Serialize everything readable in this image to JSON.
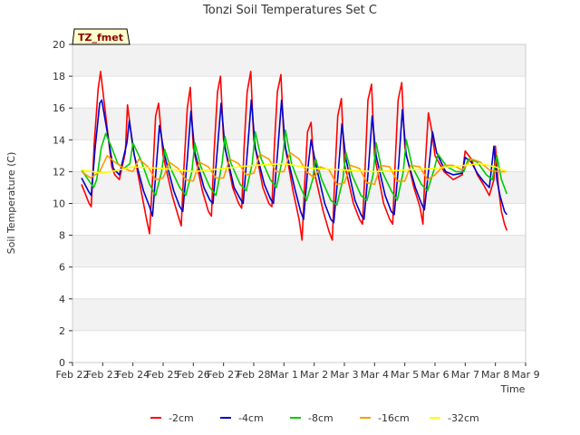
{
  "chart_data": {
    "type": "line",
    "title": "Tonzi Soil Temperatures Set C",
    "xlabel": "Time",
    "ylabel": "Soil Temperature (C)",
    "badge": "TZ_fmet",
    "ylim": [
      0,
      20
    ],
    "yticks": [
      0,
      2,
      4,
      6,
      8,
      10,
      12,
      14,
      16,
      18,
      20
    ],
    "xlim": [
      0,
      15
    ],
    "xticks": [
      0,
      1,
      2,
      3,
      4,
      5,
      6,
      7,
      8,
      9,
      10,
      11,
      12,
      13,
      14,
      15
    ],
    "xtick_labels": [
      "Feb 22",
      "Feb 23",
      "Feb 24",
      "Feb 25",
      "Feb 26",
      "Feb 27",
      "Feb 28",
      "Mar 1",
      "Mar 2",
      "Mar 3",
      "Mar 4",
      "Mar 5",
      "Mar 6",
      "Mar 7",
      "Mar 8",
      "Mar 9"
    ],
    "grid": "horizontal bands",
    "legend_position": "bottom",
    "series": [
      {
        "name": "-2cm",
        "color": "#ff0000",
        "x": [
          0.3,
          0.55,
          0.62,
          0.72,
          0.85,
          0.93,
          1.1,
          1.3,
          1.4,
          1.55,
          1.75,
          1.82,
          2.0,
          2.3,
          2.45,
          2.55,
          2.65,
          2.75,
          2.85,
          3.0,
          3.3,
          3.5,
          3.6,
          3.68,
          3.8,
          3.9,
          4.0,
          4.3,
          4.5,
          4.6,
          4.68,
          4.8,
          4.9,
          5.0,
          5.3,
          5.5,
          5.6,
          5.68,
          5.78,
          5.9,
          6.0,
          6.3,
          6.5,
          6.6,
          6.68,
          6.78,
          6.9,
          7.0,
          7.3,
          7.5,
          7.6,
          7.68,
          7.78,
          7.9,
          8.0,
          8.3,
          8.5,
          8.6,
          8.68,
          8.78,
          8.9,
          9.0,
          9.3,
          9.5,
          9.6,
          9.68,
          9.78,
          9.9,
          10.0,
          10.3,
          10.5,
          10.6,
          10.68,
          10.78,
          10.9,
          11.0,
          11.3,
          11.5,
          11.6,
          11.68,
          11.78,
          11.9,
          12.0,
          12.3,
          12.6,
          12.9,
          13.0,
          13.2,
          13.4,
          13.6,
          13.8,
          13.95,
          14.0,
          14.1,
          14.2,
          14.3,
          14.38
        ],
        "values": [
          11.2,
          10.0,
          9.8,
          13.8,
          17.2,
          18.3,
          15.5,
          12.3,
          11.8,
          11.5,
          13.2,
          16.2,
          13.5,
          10.5,
          9.0,
          8.1,
          11.5,
          15.5,
          16.3,
          13.0,
          10.5,
          9.2,
          8.6,
          12.0,
          16.0,
          17.3,
          13.5,
          10.8,
          9.5,
          9.2,
          13.0,
          17.0,
          18.0,
          14.0,
          11.0,
          10.0,
          9.7,
          13.5,
          17.0,
          18.3,
          14.0,
          11.0,
          10.0,
          9.8,
          13.5,
          17.0,
          18.1,
          14.0,
          10.8,
          9.0,
          7.7,
          11.0,
          14.5,
          15.1,
          12.0,
          9.5,
          8.2,
          7.7,
          11.5,
          15.5,
          16.6,
          12.5,
          10.0,
          9.0,
          8.7,
          12.0,
          16.5,
          17.5,
          13.0,
          10.0,
          9.0,
          8.7,
          12.5,
          16.5,
          17.6,
          13.5,
          11.0,
          9.8,
          8.7,
          12.5,
          15.7,
          14.5,
          13.0,
          12.0,
          11.5,
          11.8,
          13.3,
          12.8,
          11.8,
          11.2,
          10.5,
          11.5,
          13.6,
          11.0,
          9.5,
          8.7,
          8.3
        ]
      },
      {
        "name": "-4cm",
        "color": "#0000cc",
        "x": [
          0.3,
          0.55,
          0.62,
          0.75,
          0.9,
          0.97,
          1.15,
          1.35,
          1.55,
          1.8,
          1.88,
          2.05,
          2.35,
          2.55,
          2.65,
          2.78,
          2.88,
          3.05,
          3.35,
          3.55,
          3.65,
          3.8,
          3.92,
          4.05,
          4.35,
          4.55,
          4.65,
          4.8,
          4.92,
          5.05,
          5.35,
          5.55,
          5.65,
          5.8,
          5.92,
          6.05,
          6.35,
          6.55,
          6.65,
          6.8,
          6.92,
          7.05,
          7.35,
          7.55,
          7.65,
          7.78,
          7.9,
          8.05,
          8.35,
          8.55,
          8.65,
          8.8,
          8.92,
          9.05,
          9.35,
          9.55,
          9.65,
          9.8,
          9.92,
          10.05,
          10.35,
          10.55,
          10.65,
          10.8,
          10.92,
          11.05,
          11.35,
          11.55,
          11.65,
          11.8,
          11.92,
          12.05,
          12.35,
          12.6,
          12.9,
          13.0,
          13.2,
          13.4,
          13.6,
          13.8,
          13.95,
          14.05,
          14.15,
          14.3,
          14.38
        ],
        "values": [
          11.6,
          10.7,
          10.5,
          13.5,
          16.3,
          16.5,
          14.5,
          12.2,
          11.8,
          13.8,
          15.2,
          13.0,
          10.8,
          9.8,
          9.2,
          12.5,
          14.9,
          13.0,
          10.8,
          9.8,
          9.5,
          12.8,
          15.8,
          13.2,
          11.0,
          10.2,
          10.0,
          13.5,
          16.3,
          13.5,
          11.0,
          10.3,
          10.0,
          13.5,
          16.5,
          13.5,
          11.2,
          10.3,
          10.0,
          13.5,
          16.5,
          13.5,
          11.0,
          9.5,
          9.0,
          12.0,
          14.0,
          12.5,
          10.0,
          9.0,
          8.8,
          12.0,
          15.0,
          12.8,
          10.2,
          9.3,
          9.0,
          12.3,
          15.5,
          13.0,
          10.5,
          9.5,
          9.3,
          12.5,
          15.9,
          13.0,
          11.0,
          10.0,
          9.6,
          12.3,
          14.5,
          13.2,
          12.0,
          11.8,
          11.9,
          12.9,
          12.6,
          11.9,
          11.4,
          11.0,
          13.6,
          11.5,
          10.5,
          9.5,
          9.3
        ]
      },
      {
        "name": "-8cm",
        "color": "#00cc00",
        "x": [
          0.3,
          0.7,
          0.8,
          0.95,
          1.1,
          1.3,
          1.5,
          1.7,
          1.9,
          2.0,
          2.25,
          2.55,
          2.75,
          2.95,
          3.05,
          3.25,
          3.55,
          3.75,
          3.95,
          4.05,
          4.25,
          4.55,
          4.75,
          4.95,
          5.05,
          5.25,
          5.55,
          5.75,
          5.95,
          6.05,
          6.25,
          6.55,
          6.75,
          6.95,
          7.05,
          7.25,
          7.55,
          7.75,
          7.95,
          8.05,
          8.25,
          8.55,
          8.75,
          8.95,
          9.05,
          9.25,
          9.55,
          9.75,
          9.95,
          10.05,
          10.25,
          10.55,
          10.75,
          10.95,
          11.05,
          11.25,
          11.55,
          11.75,
          11.95,
          12.1,
          12.4,
          12.7,
          12.95,
          13.1,
          13.4,
          13.7,
          13.9,
          14.05,
          14.2,
          14.38
        ],
        "values": [
          12.1,
          11.0,
          11.5,
          13.5,
          14.4,
          13.5,
          12.5,
          12.2,
          12.5,
          13.8,
          12.8,
          11.2,
          10.5,
          12.0,
          13.4,
          12.2,
          11.0,
          10.5,
          12.0,
          13.8,
          12.3,
          11.0,
          10.5,
          12.5,
          14.2,
          12.5,
          11.2,
          10.8,
          12.5,
          14.5,
          12.8,
          11.5,
          11.0,
          12.8,
          14.6,
          12.5,
          11.0,
          10.2,
          11.5,
          12.8,
          11.5,
          10.2,
          9.9,
          11.5,
          13.2,
          11.8,
          10.5,
          10.2,
          11.8,
          13.8,
          12.0,
          10.8,
          10.2,
          12.0,
          14.0,
          12.3,
          11.2,
          10.8,
          12.0,
          13.1,
          12.3,
          12.0,
          12.0,
          12.8,
          12.6,
          11.8,
          11.5,
          13.0,
          11.5,
          10.6
        ]
      },
      {
        "name": "-16cm",
        "color": "#ff9900",
        "x": [
          0.3,
          0.6,
          0.9,
          1.15,
          1.4,
          1.7,
          2.0,
          2.2,
          2.5,
          2.75,
          3.0,
          3.2,
          3.5,
          3.75,
          4.0,
          4.2,
          4.5,
          4.75,
          5.0,
          5.2,
          5.5,
          5.75,
          6.0,
          6.2,
          6.5,
          6.75,
          7.0,
          7.2,
          7.5,
          7.75,
          8.0,
          8.2,
          8.5,
          8.75,
          9.0,
          9.2,
          9.5,
          9.75,
          10.0,
          10.2,
          10.5,
          10.75,
          11.0,
          11.2,
          11.5,
          11.75,
          12.0,
          12.3,
          12.6,
          12.9,
          13.2,
          13.5,
          13.8,
          14.1,
          14.38
        ],
        "values": [
          12.0,
          11.6,
          12.0,
          13.0,
          12.6,
          12.2,
          12.0,
          12.8,
          12.3,
          11.5,
          11.6,
          12.6,
          12.2,
          11.5,
          11.4,
          12.6,
          12.3,
          11.6,
          11.6,
          12.8,
          12.5,
          11.8,
          11.9,
          13.1,
          12.8,
          12.0,
          12.0,
          13.2,
          12.8,
          12.0,
          11.6,
          12.3,
          12.1,
          11.2,
          11.3,
          12.4,
          12.2,
          11.3,
          11.2,
          12.4,
          12.3,
          11.4,
          11.4,
          12.4,
          12.3,
          11.5,
          11.8,
          12.4,
          12.4,
          12.1,
          12.8,
          12.6,
          12.1,
          12.0,
          12.0
        ]
      },
      {
        "name": "-32cm",
        "color": "#ffff00",
        "x": [
          0.3,
          1.0,
          2.0,
          3.0,
          4.0,
          5.0,
          6.0,
          7.0,
          8.0,
          9.0,
          10.0,
          11.0,
          12.0,
          13.0,
          13.5,
          14.0,
          14.38
        ],
        "values": [
          12.1,
          11.9,
          12.3,
          12.2,
          12.0,
          12.2,
          12.4,
          12.5,
          12.2,
          12.1,
          12.0,
          12.1,
          12.2,
          12.4,
          12.5,
          12.3,
          12.0
        ]
      }
    ]
  }
}
